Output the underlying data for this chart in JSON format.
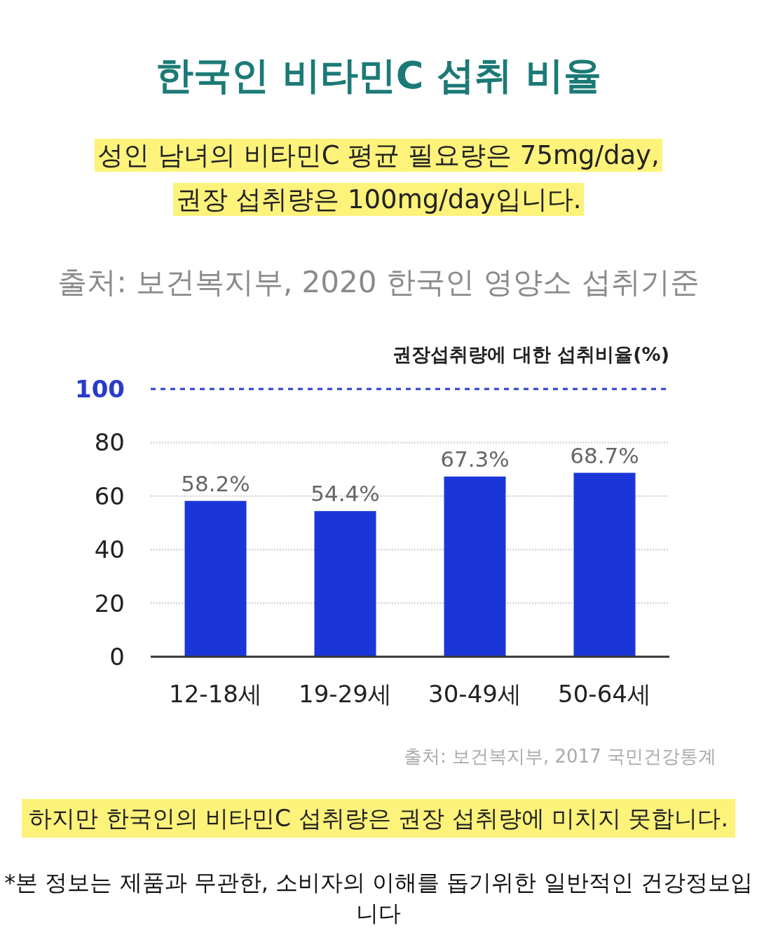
{
  "chart_data": {
    "type": "bar",
    "title": "한국인 비타민C 섭취 비율",
    "subtitle": "성인 남녀의 비타민C 평균 필요량은 75mg/day, 권장 섭취량은 100mg/day입니다.",
    "ylabel": "권장섭취량에 대한 섭취비율(%)",
    "annotations": [
      "출처: 보건복지부, 2020 한국인 영양소 섭취기준",
      "출처: 보건복지부, 2017 국민건강통계",
      "하지만 한국인의 비타민C 섭취량은 권장 섭취량에 미치지 못합니다.",
      "*본 정보는 제품과 무관한, 소비자의 이해를 돕기위한 일반적인 건강정보입니다"
    ],
    "categories": [
      "12-18세",
      "19-29세",
      "30-49세",
      "50-64세"
    ],
    "values": [
      58.2,
      54.4,
      67.3,
      68.7
    ],
    "value_labels": [
      "58.2%",
      "54.4%",
      "67.3%",
      "68.7%"
    ],
    "color": "#1b36d8",
    "ylim": [
      0,
      100
    ],
    "yticks": [
      0,
      20,
      40,
      60,
      80,
      100
    ],
    "grid": "y",
    "ref_lines": [
      {
        "axis": "y",
        "value": 100,
        "color": "#2a3bc9",
        "line_style": "dashed"
      }
    ]
  }
}
